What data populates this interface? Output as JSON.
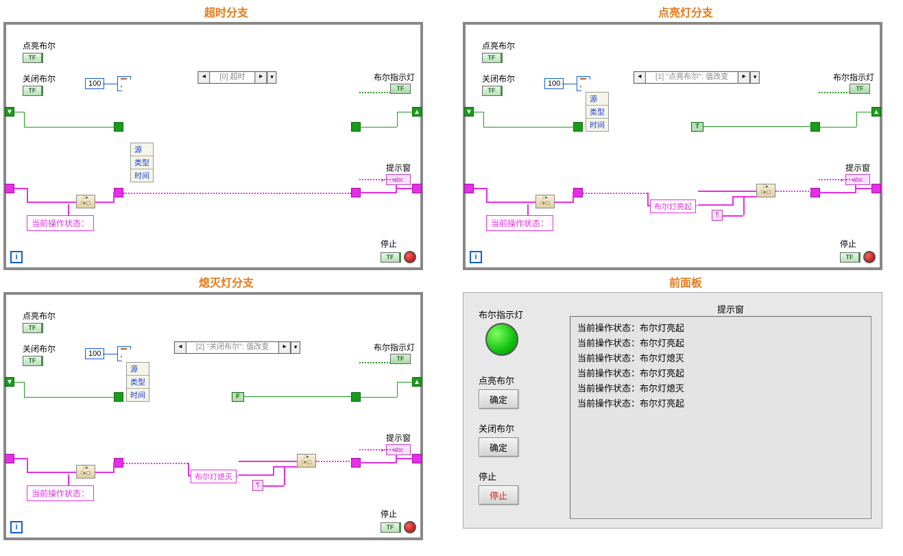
{
  "titles": {
    "timeout": "超时分支",
    "lighton": "点亮灯分支",
    "lightoff": "熄灭灯分支",
    "front": "前面板"
  },
  "labels": {
    "bool_on": "点亮布尔",
    "bool_off": "关闭布尔",
    "indicator": "布尔指示灯",
    "prompt_window": "提示窗",
    "stop": "停止",
    "status_prefix": "当前操作状态：",
    "light_on_msg": "布尔灯亮起",
    "light_off_msg": "布尔灯熄灭",
    "ok_btn": "确定",
    "stop_btn": "停止"
  },
  "event_cases": {
    "timeout": "[0] 超时",
    "on": "[1] \"点亮布尔\": 值改变",
    "off": "[2] \"关闭布尔\": 值改变"
  },
  "data_node": {
    "src": "源",
    "type": "类型",
    "time": "时间"
  },
  "const_100": "100",
  "tf_text": "TF",
  "bool_true": "T",
  "bool_false": "F",
  "abc": "abc",
  "colors": {
    "title": "#e67817",
    "frame": "#888888",
    "wire_green": "#1a9c1a",
    "wire_pink": "#e62ee6",
    "led": "#10c010"
  },
  "front_panel": {
    "log": [
      "当前操作状态：布尔灯亮起",
      "当前操作状态：布尔灯亮起",
      "当前操作状态：布尔灯熄灭",
      "当前操作状态：布尔灯亮起",
      "当前操作状态：布尔灯熄灭",
      "当前操作状态：布尔灯亮起"
    ]
  }
}
